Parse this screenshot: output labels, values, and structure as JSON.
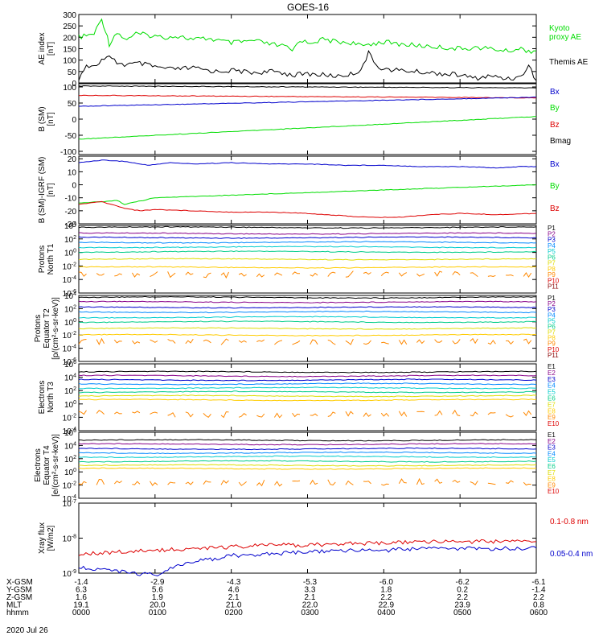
{
  "chart_data": {
    "type": "line",
    "title": "GOES-16",
    "footer_date": "2020 Jul 26",
    "colors": {
      "green": "#00dd00",
      "black": "#000000",
      "blue": "#0000cc",
      "red": "#dd0000",
      "ch": [
        "#000000",
        "#880088",
        "#0000cc",
        "#0088ff",
        "#00cccc",
        "#00cc88",
        "#dddd00",
        "#ffcc00",
        "#ff8800",
        "#dd0000",
        "#880000"
      ]
    },
    "panels": [
      {
        "id": "ae",
        "ylabel": [
          "AE index",
          "[nT]"
        ],
        "scale": "linear",
        "ylim": [
          0,
          300
        ],
        "ticks": [
          0,
          50,
          100,
          150,
          200,
          250,
          300
        ],
        "tick_labels": [
          "0",
          "50",
          "100",
          "150",
          "200",
          "250",
          "300"
        ],
        "legend": [
          "Kyoto",
          "proxy AE",
          "Themis AE"
        ],
        "series": [
          {
            "name": "Kyoto proxy AE",
            "color": "green",
            "x": [
              0,
              0.2,
              0.3,
              0.35,
              0.4,
              0.5,
              0.6,
              0.75,
              0.9,
              1.1,
              1.3,
              1.5,
              1.7,
              2.0,
              2.3,
              2.5,
              2.7,
              2.8,
              2.9,
              3.0,
              3.2,
              3.4,
              3.6,
              3.7,
              3.8,
              4.0,
              4.2,
              4.4,
              4.6,
              4.8,
              5.0,
              5.2,
              5.4,
              5.6,
              5.8,
              5.9,
              6.0
            ],
            "y": [
              200,
              215,
              280,
              230,
              170,
              225,
              190,
              215,
              210,
              200,
              205,
              190,
              195,
              175,
              185,
              170,
              160,
              140,
              190,
              175,
              190,
              180,
              175,
              160,
              170,
              180,
              170,
              165,
              160,
              155,
              150,
              155,
              150,
              140,
              150,
              140,
              140
            ]
          },
          {
            "name": "Themis AE",
            "color": "black",
            "x": [
              0,
              0.1,
              0.2,
              0.3,
              0.4,
              0.5,
              0.6,
              0.8,
              1.0,
              1.2,
              1.5,
              1.8,
              2.0,
              2.3,
              2.6,
              2.8,
              3.0,
              3.2,
              3.4,
              3.6,
              3.7,
              3.8,
              3.9,
              4.0,
              4.2,
              4.4,
              4.6,
              4.8,
              5.0,
              5.2,
              5.4,
              5.6,
              5.8,
              5.9,
              6.0
            ],
            "y": [
              20,
              80,
              70,
              100,
              110,
              90,
              80,
              85,
              70,
              60,
              65,
              50,
              55,
              45,
              50,
              35,
              40,
              35,
              30,
              40,
              60,
              130,
              80,
              60,
              55,
              50,
              45,
              40,
              35,
              20,
              30,
              20,
              25,
              80,
              10
            ]
          }
        ]
      },
      {
        "id": "bsm",
        "ylabel": [
          "B (SM)",
          "[nT]"
        ],
        "scale": "linear",
        "ylim": [
          -110,
          110
        ],
        "ticks": [
          -100,
          -50,
          0,
          50,
          100
        ],
        "tick_labels": [
          "-100",
          "-50",
          "0",
          "50",
          "100"
        ],
        "legend": [
          "Bx",
          "By",
          "Bz",
          "Bmag"
        ],
        "series": [
          {
            "name": "Bmag",
            "color": "black",
            "x": [
              0,
              6
            ],
            "y": [
              103,
              97
            ]
          },
          {
            "name": "Bz",
            "color": "red",
            "x": [
              0,
              6
            ],
            "y": [
              74,
              66
            ]
          },
          {
            "name": "Bx",
            "color": "blue",
            "x": [
              0,
              6
            ],
            "y": [
              40,
              68
            ]
          },
          {
            "name": "By",
            "color": "green",
            "x": [
              0,
              6
            ],
            "y": [
              -62,
              8
            ]
          }
        ]
      },
      {
        "id": "bigrf",
        "ylabel": [
          "B (SM)-IGRF (SM)",
          "[nT]"
        ],
        "scale": "linear",
        "ylim": [
          -30,
          22
        ],
        "ticks": [
          -30,
          -20,
          -10,
          0,
          10,
          20
        ],
        "tick_labels": [
          "-30",
          "-20",
          "-10",
          "0",
          "10",
          "20"
        ],
        "legend": [
          "Bx",
          "By",
          "Bz"
        ],
        "series": [
          {
            "name": "Bx",
            "color": "blue",
            "x": [
              0,
              0.3,
              0.6,
              0.9,
              1.2,
              1.5,
              2.0,
              2.5,
              3.0,
              3.5,
              4.0,
              4.5,
              5.0,
              5.5,
              5.8,
              6.0
            ],
            "y": [
              17,
              19,
              18,
              15,
              17,
              16,
              17,
              16,
              16,
              15,
              15,
              14,
              14,
              13,
              14,
              14
            ]
          },
          {
            "name": "By",
            "color": "green",
            "x": [
              0,
              0.3,
              0.5,
              0.6,
              1.0,
              1.5,
              2.0,
              2.5,
              3.0,
              3.5,
              4.0,
              4.5,
              5.0,
              5.5,
              6.0
            ],
            "y": [
              -14,
              -13,
              -12,
              -15,
              -10,
              -9,
              -8,
              -7,
              -6,
              -5,
              -4,
              -3,
              -2,
              -1,
              0
            ]
          },
          {
            "name": "Bz",
            "color": "red",
            "x": [
              0,
              0.3,
              0.6,
              0.8,
              1.0,
              1.5,
              2.0,
              2.5,
              3.0,
              3.5,
              3.8,
              4.2,
              4.6,
              5.0,
              5.5,
              6.0
            ],
            "y": [
              -15,
              -13,
              -18,
              -20,
              -19,
              -20,
              -21,
              -21,
              -22,
              -24,
              -25,
              -25,
              -23,
              -22,
              -23,
              -22
            ]
          }
        ]
      },
      {
        "id": "pt1",
        "ylabel": [
          "Protons",
          "North T1"
        ],
        "scale": "log",
        "ylim": [
          -6,
          4
        ],
        "ticks": [
          4,
          2,
          0,
          -2,
          -4,
          -6
        ],
        "tick_labels": [
          "10^4",
          "10^2",
          "10^0",
          "10^-2",
          "10^-4",
          "10^-6"
        ],
        "legend": [
          "P1",
          "P2",
          "P3",
          "P4",
          "P5",
          "P6",
          "P7",
          "P8",
          "P9",
          "P10",
          "P11"
        ],
        "channel_levels": [
          3.7,
          2.8,
          2.2,
          1.5,
          0.8,
          0.1,
          -1.0,
          -2.2,
          -3.2
        ]
      },
      {
        "id": "pt2",
        "ylabel": [
          "Protons",
          "Equator T2",
          "[p/(cm²-s-sr-keV)]"
        ],
        "scale": "log",
        "ylim": [
          -6,
          4
        ],
        "ticks": [
          4,
          2,
          0,
          -2,
          -4,
          -6
        ],
        "tick_labels": [
          "10^4",
          "10^2",
          "10^0",
          "10^-2",
          "10^-4",
          "10^-6"
        ],
        "legend": [
          "P1",
          "P2",
          "P3",
          "P4",
          "P5",
          "P6",
          "P7",
          "P8",
          "P9",
          "P10",
          "P11"
        ],
        "channel_levels": [
          3.7,
          3.0,
          2.2,
          1.5,
          0.7,
          0.0,
          -1.0,
          -2.0,
          -3.0
        ]
      },
      {
        "id": "et3",
        "ylabel": [
          "Electrons",
          "North T3"
        ],
        "scale": "log",
        "ylim": [
          -4,
          6
        ],
        "ticks": [
          6,
          4,
          2,
          0,
          -2,
          -4
        ],
        "tick_labels": [
          "10^6",
          "10^4",
          "10^2",
          "10^0",
          "10^-2",
          "10^-4"
        ],
        "legend": [
          "E1",
          "E2",
          "E3",
          "E4",
          "E5",
          "E6",
          "E7",
          "E8",
          "E9",
          "E10"
        ],
        "channel_levels": [
          4.8,
          4.2,
          3.6,
          3.0,
          2.4,
          1.8,
          1.2,
          0.6,
          -1.5
        ]
      },
      {
        "id": "et4",
        "ylabel": [
          "Electrons",
          "Equator T4",
          "[e/(cm²-s-sr-keV)]"
        ],
        "scale": "log",
        "ylim": [
          -4,
          6
        ],
        "ticks": [
          6,
          4,
          2,
          0,
          -2,
          -4
        ],
        "tick_labels": [
          "10^6",
          "10^4",
          "10^2",
          "10^0",
          "10^-2",
          "10^-4"
        ],
        "legend": [
          "E1",
          "E2",
          "E3",
          "E4",
          "E5",
          "E6",
          "E7",
          "E8",
          "E9",
          "E10"
        ],
        "channel_levels": [
          4.8,
          4.2,
          3.5,
          2.9,
          2.3,
          1.6,
          1.0,
          0.5,
          -1.6
        ]
      },
      {
        "id": "xray",
        "ylabel": [
          "Xray flux",
          "[W/m2]"
        ],
        "scale": "log",
        "ylim": [
          -9,
          -7
        ],
        "ticks": [
          -7,
          -8,
          -9
        ],
        "tick_labels": [
          "10^-7",
          "10^-8",
          "10^-9"
        ],
        "legend": [
          "0.1-0.8 nm",
          "0.05-0.4 nm"
        ],
        "series": [
          {
            "name": "0.1-0.8 nm",
            "color": "red",
            "x": [
              0,
              0.5,
              1.0,
              1.5,
              2.0,
              2.5,
              3.0,
              3.5,
              4.0,
              4.5,
              5.0,
              5.5,
              6.0
            ],
            "y": [
              -8.45,
              -8.4,
              -8.35,
              -8.3,
              -8.25,
              -8.2,
              -8.2,
              -8.15,
              -8.15,
              -8.1,
              -8.1,
              -8.1,
              -8.1
            ]
          },
          {
            "name": "0.05-0.4 nm",
            "color": "blue",
            "x": [
              0,
              0.4,
              0.7,
              1.0,
              1.3,
              1.6,
              2.0,
              2.5,
              3.0,
              3.5,
              4.0,
              4.5,
              5.0,
              5.5,
              6.0
            ],
            "y": [
              -8.85,
              -8.9,
              -9.0,
              -9.05,
              -8.8,
              -8.65,
              -8.5,
              -8.45,
              -8.4,
              -8.35,
              -8.35,
              -8.3,
              -8.3,
              -8.3,
              -8.28
            ]
          }
        ]
      }
    ],
    "xaxis": {
      "ticks": [
        0,
        1,
        2,
        3,
        4,
        5,
        6
      ],
      "rows": [
        {
          "label": "X-GSM",
          "values": [
            "-1.4",
            "-2.9",
            "-4.3",
            "-5.3",
            "-6.0",
            "-6.2",
            "-6.1"
          ]
        },
        {
          "label": "Y-GSM",
          "values": [
            "6.3",
            "5.6",
            "4.6",
            "3.3",
            "1.8",
            "0.2",
            "-1.4"
          ]
        },
        {
          "label": "Z-GSM",
          "values": [
            "1.6",
            "1.9",
            "2.1",
            "2.1",
            "2.2",
            "2.2",
            "2.2"
          ]
        },
        {
          "label": "MLT",
          "values": [
            "19.1",
            "20.0",
            "21.0",
            "22.0",
            "22.9",
            "23.9",
            "0.8"
          ]
        },
        {
          "label": "hhmm",
          "values": [
            "0000",
            "0100",
            "0200",
            "0300",
            "0400",
            "0500",
            "0600"
          ]
        }
      ]
    }
  }
}
